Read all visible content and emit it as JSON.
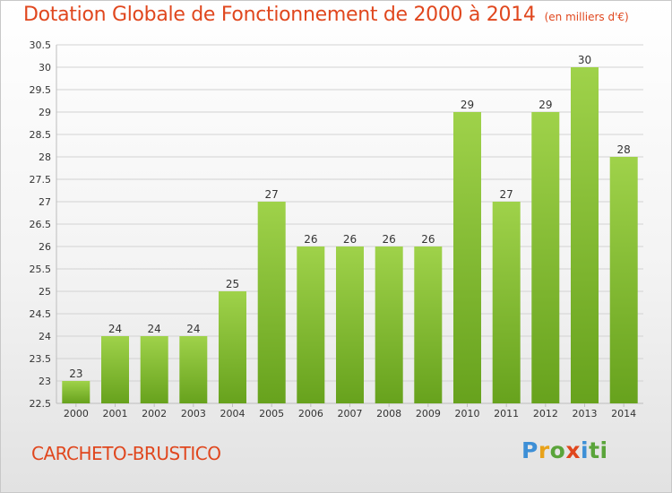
{
  "title": "Dotation Globale de Fonctionnement de 2000 à 2014",
  "unit": "(en milliers d'€)",
  "city": "CARCHETO-BRUSTICO",
  "logo": {
    "text": "Proxiti",
    "letters": [
      "P",
      "r",
      "o",
      "x",
      "i",
      "ti"
    ]
  },
  "chart_data": {
    "type": "bar",
    "categories": [
      "2000",
      "2001",
      "2002",
      "2003",
      "2004",
      "2005",
      "2006",
      "2007",
      "2008",
      "2009",
      "2010",
      "2011",
      "2012",
      "2013",
      "2014"
    ],
    "values": [
      23,
      24,
      24,
      24,
      25,
      27,
      26,
      26,
      26,
      26,
      29,
      27,
      29,
      30,
      28
    ],
    "data_labels": [
      "23",
      "24",
      "24",
      "24",
      "25",
      "27",
      "26",
      "26",
      "26",
      "26",
      "29",
      "27",
      "29",
      "30",
      "28"
    ],
    "yticks": [
      "22.5",
      "23",
      "23.5",
      "24",
      "24.5",
      "25",
      "25.5",
      "26",
      "26.5",
      "27",
      "27.5",
      "28",
      "28.5",
      "29",
      "29.5",
      "30",
      "30.5"
    ],
    "ylim": [
      22.5,
      30.5
    ],
    "grid": true,
    "bar_color_top": "#9fd24a",
    "bar_color_bottom": "#67a21d",
    "xlabel": "",
    "ylabel": ""
  }
}
